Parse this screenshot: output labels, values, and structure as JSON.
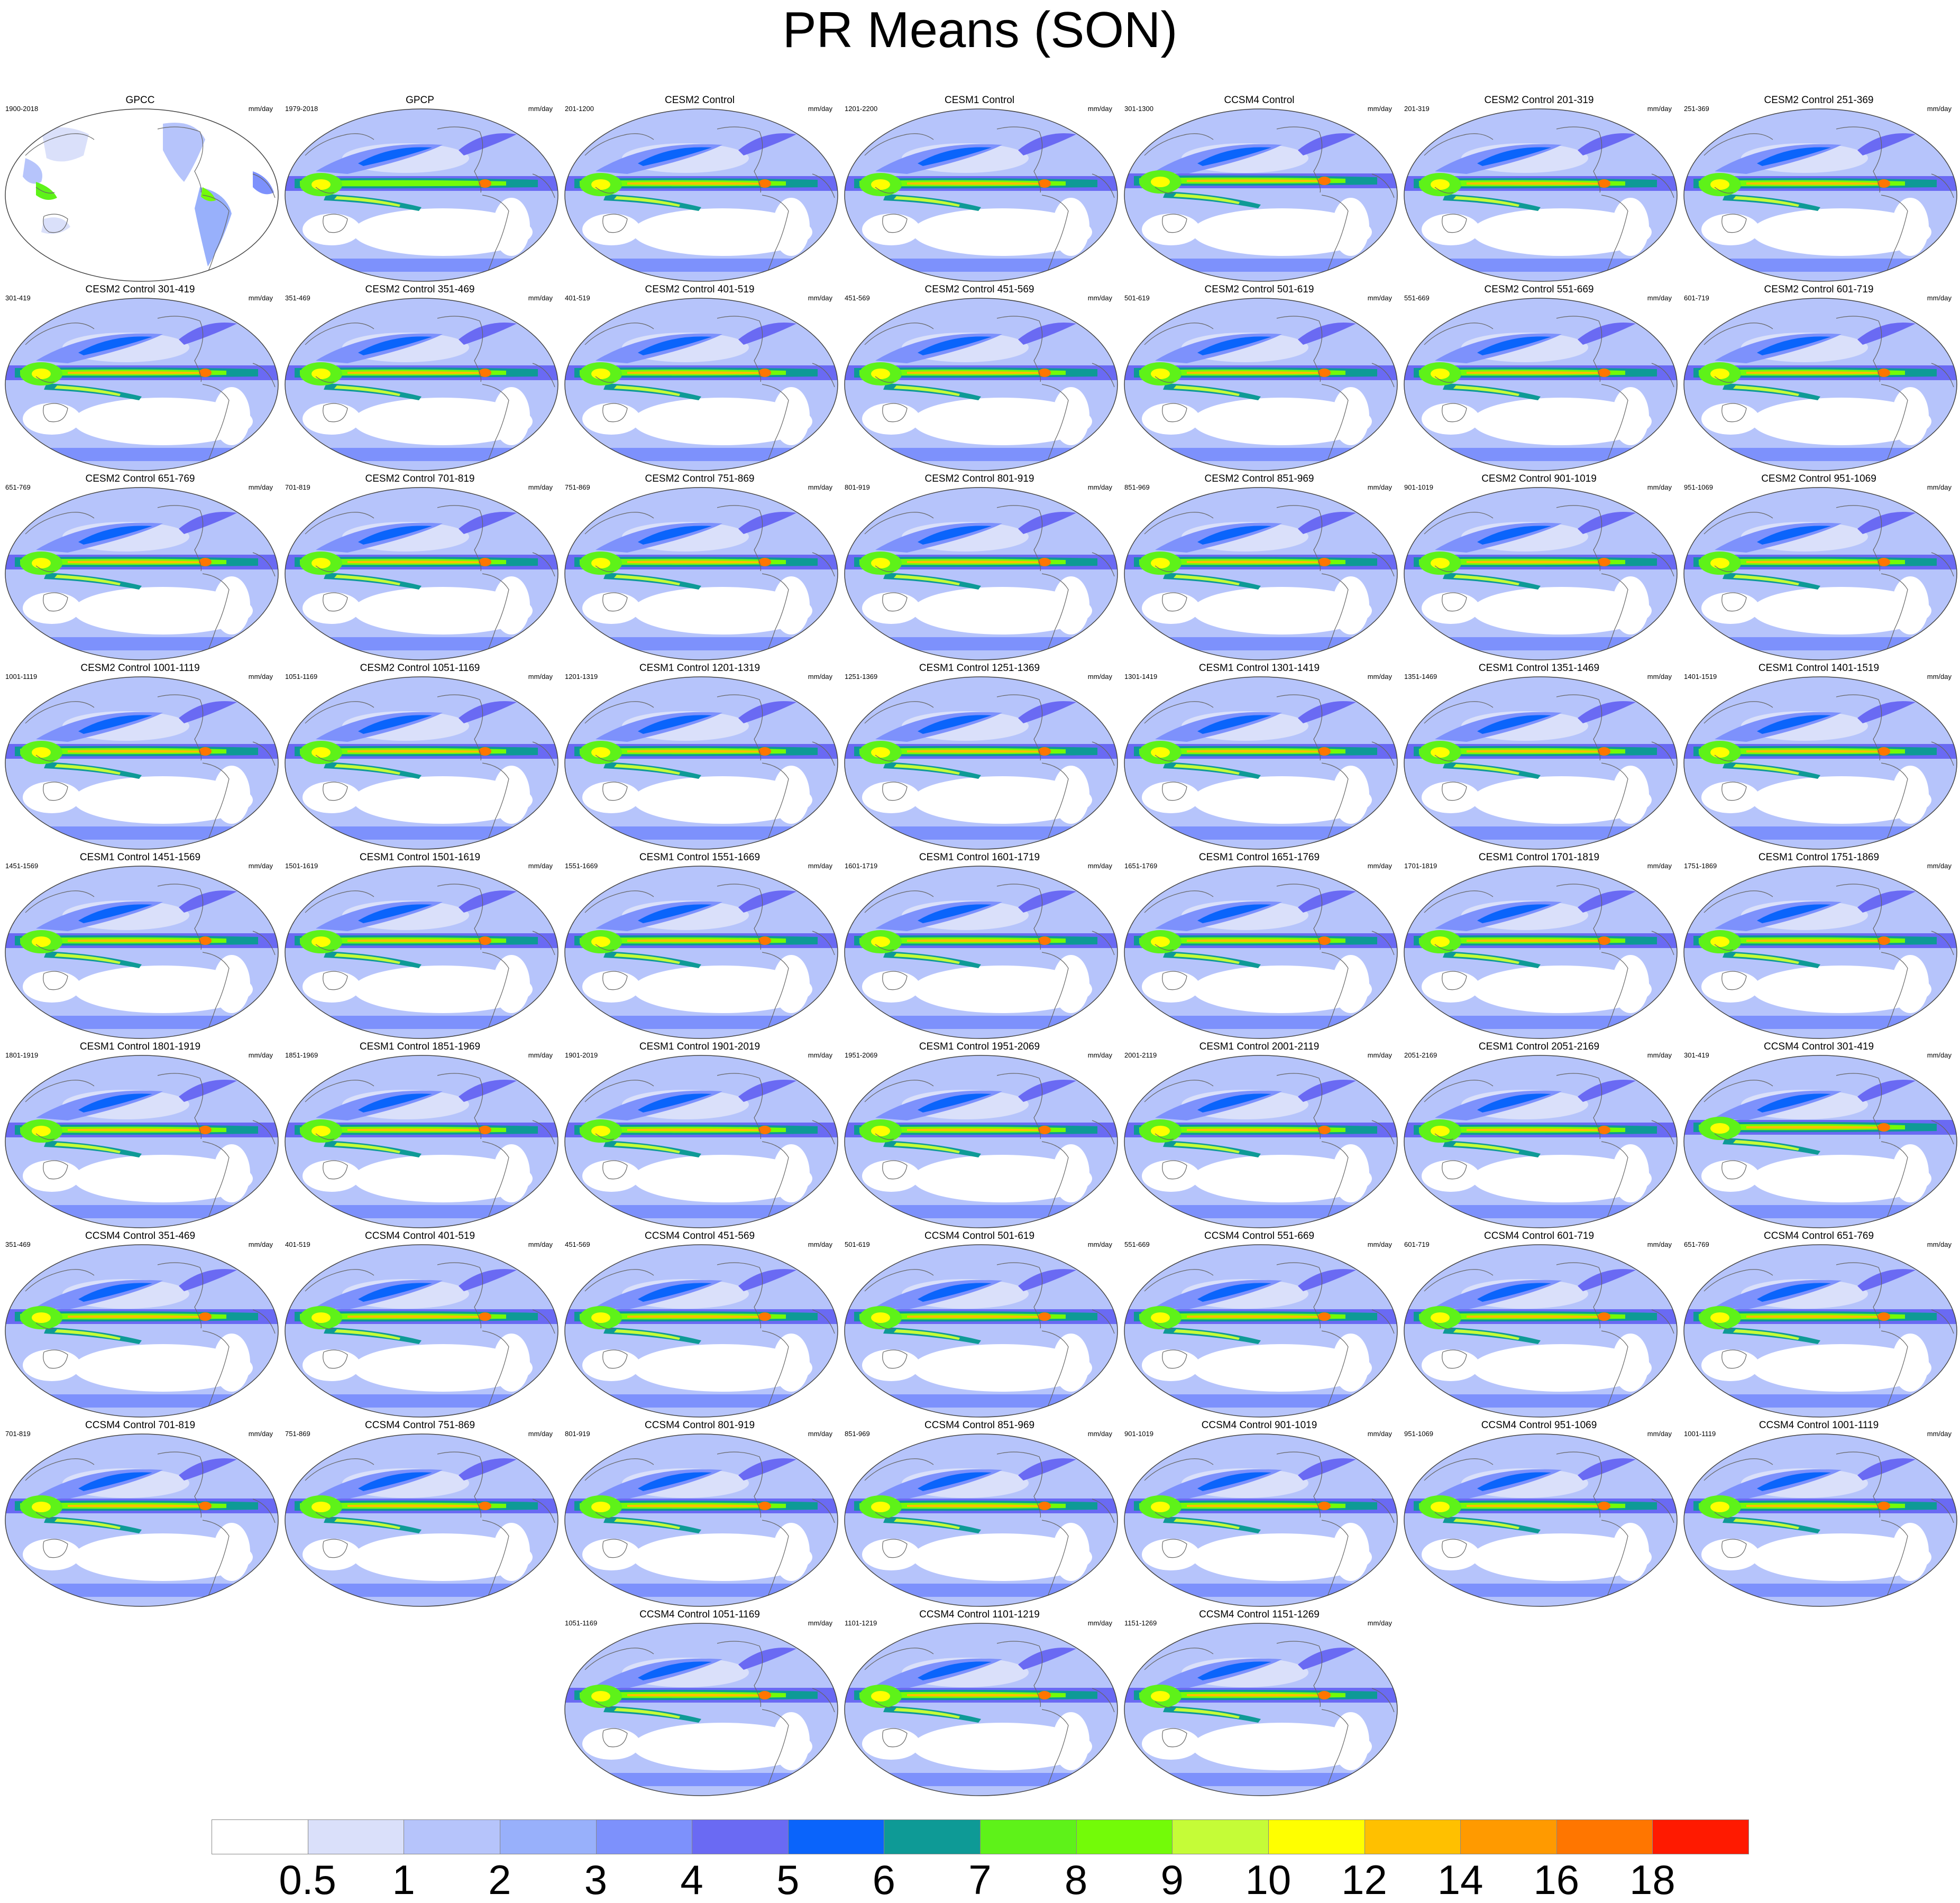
{
  "title": "PR Means (SON)",
  "units": "mm/day",
  "panels": [
    {
      "title": "GPCC",
      "years": "1900-2018",
      "kind": "obs-land"
    },
    {
      "title": "GPCP",
      "years": "1979-2018",
      "kind": "obs"
    },
    {
      "title": "CESM2 Control",
      "years": "201-1200",
      "kind": "cesm2"
    },
    {
      "title": "CESM1 Control",
      "years": "1201-2200",
      "kind": "cesm1"
    },
    {
      "title": "CCSM4 Control",
      "years": "301-1300",
      "kind": "ccsm4"
    },
    {
      "title": "CESM2 Control 201-319",
      "years": "201-319",
      "kind": "cesm2"
    },
    {
      "title": "CESM2 Control 251-369",
      "years": "251-369",
      "kind": "cesm2"
    },
    {
      "title": "CESM2 Control 301-419",
      "years": "301-419",
      "kind": "cesm2"
    },
    {
      "title": "CESM2 Control 351-469",
      "years": "351-469",
      "kind": "cesm2"
    },
    {
      "title": "CESM2 Control 401-519",
      "years": "401-519",
      "kind": "cesm2"
    },
    {
      "title": "CESM2 Control 451-569",
      "years": "451-569",
      "kind": "cesm2"
    },
    {
      "title": "CESM2 Control 501-619",
      "years": "501-619",
      "kind": "cesm2"
    },
    {
      "title": "CESM2 Control 551-669",
      "years": "551-669",
      "kind": "cesm2"
    },
    {
      "title": "CESM2 Control 601-719",
      "years": "601-719",
      "kind": "cesm2"
    },
    {
      "title": "CESM2 Control 651-769",
      "years": "651-769",
      "kind": "cesm2"
    },
    {
      "title": "CESM2 Control 701-819",
      "years": "701-819",
      "kind": "cesm2"
    },
    {
      "title": "CESM2 Control 751-869",
      "years": "751-869",
      "kind": "cesm2"
    },
    {
      "title": "CESM2 Control 801-919",
      "years": "801-919",
      "kind": "cesm2"
    },
    {
      "title": "CESM2 Control 851-969",
      "years": "851-969",
      "kind": "cesm2"
    },
    {
      "title": "CESM2 Control 901-1019",
      "years": "901-1019",
      "kind": "cesm2"
    },
    {
      "title": "CESM2 Control 951-1069",
      "years": "951-1069",
      "kind": "cesm2"
    },
    {
      "title": "CESM2 Control 1001-1119",
      "years": "1001-1119",
      "kind": "cesm2"
    },
    {
      "title": "CESM2 Control 1051-1169",
      "years": "1051-1169",
      "kind": "cesm2"
    },
    {
      "title": "CESM1 Control 1201-1319",
      "years": "1201-1319",
      "kind": "cesm1"
    },
    {
      "title": "CESM1 Control 1251-1369",
      "years": "1251-1369",
      "kind": "cesm1"
    },
    {
      "title": "CESM1 Control 1301-1419",
      "years": "1301-1419",
      "kind": "cesm1"
    },
    {
      "title": "CESM1 Control 1351-1469",
      "years": "1351-1469",
      "kind": "cesm1"
    },
    {
      "title": "CESM1 Control 1401-1519",
      "years": "1401-1519",
      "kind": "cesm1"
    },
    {
      "title": "CESM1 Control 1451-1569",
      "years": "1451-1569",
      "kind": "cesm1"
    },
    {
      "title": "CESM1 Control 1501-1619",
      "years": "1501-1619",
      "kind": "cesm1"
    },
    {
      "title": "CESM1 Control 1551-1669",
      "years": "1551-1669",
      "kind": "cesm1"
    },
    {
      "title": "CESM1 Control 1601-1719",
      "years": "1601-1719",
      "kind": "cesm1"
    },
    {
      "title": "CESM1 Control 1651-1769",
      "years": "1651-1769",
      "kind": "cesm1"
    },
    {
      "title": "CESM1 Control 1701-1819",
      "years": "1701-1819",
      "kind": "cesm1"
    },
    {
      "title": "CESM1 Control 1751-1869",
      "years": "1751-1869",
      "kind": "cesm1"
    },
    {
      "title": "CESM1 Control 1801-1919",
      "years": "1801-1919",
      "kind": "cesm1"
    },
    {
      "title": "CESM1 Control 1851-1969",
      "years": "1851-1969",
      "kind": "cesm1"
    },
    {
      "title": "CESM1 Control 1901-2019",
      "years": "1901-2019",
      "kind": "cesm1"
    },
    {
      "title": "CESM1 Control 1951-2069",
      "years": "1951-2069",
      "kind": "cesm1"
    },
    {
      "title": "CESM1 Control 2001-2119",
      "years": "2001-2119",
      "kind": "cesm1"
    },
    {
      "title": "CESM1 Control 2051-2169",
      "years": "2051-2169",
      "kind": "cesm1"
    },
    {
      "title": "CCSM4 Control 301-419",
      "years": "301-419",
      "kind": "ccsm4"
    },
    {
      "title": "CCSM4 Control 351-469",
      "years": "351-469",
      "kind": "ccsm4"
    },
    {
      "title": "CCSM4 Control 401-519",
      "years": "401-519",
      "kind": "ccsm4"
    },
    {
      "title": "CCSM4 Control 451-569",
      "years": "451-569",
      "kind": "ccsm4"
    },
    {
      "title": "CCSM4 Control 501-619",
      "years": "501-619",
      "kind": "ccsm4"
    },
    {
      "title": "CCSM4 Control 551-669",
      "years": "551-669",
      "kind": "ccsm4"
    },
    {
      "title": "CCSM4 Control 601-719",
      "years": "601-719",
      "kind": "ccsm4"
    },
    {
      "title": "CCSM4 Control 651-769",
      "years": "651-769",
      "kind": "ccsm4"
    },
    {
      "title": "CCSM4 Control 701-819",
      "years": "701-819",
      "kind": "ccsm4"
    },
    {
      "title": "CCSM4 Control 751-869",
      "years": "751-869",
      "kind": "ccsm4"
    },
    {
      "title": "CCSM4 Control 801-919",
      "years": "801-919",
      "kind": "ccsm4"
    },
    {
      "title": "CCSM4 Control 851-969",
      "years": "851-969",
      "kind": "ccsm4"
    },
    {
      "title": "CCSM4 Control 901-1019",
      "years": "901-1019",
      "kind": "ccsm4"
    },
    {
      "title": "CCSM4 Control 951-1069",
      "years": "951-1069",
      "kind": "ccsm4"
    },
    {
      "title": "CCSM4 Control 1001-1119",
      "years": "1001-1119",
      "kind": "ccsm4"
    },
    {
      "title": "CCSM4 Control 1051-1169",
      "years": "1051-1169",
      "kind": "ccsm4"
    },
    {
      "title": "CCSM4 Control 1101-1219",
      "years": "1101-1219",
      "kind": "ccsm4"
    },
    {
      "title": "CCSM4 Control 1151-1269",
      "years": "1151-1269",
      "kind": "ccsm4"
    }
  ],
  "colorbar": {
    "labels": [
      "0.5",
      "1",
      "2",
      "3",
      "4",
      "5",
      "6",
      "7",
      "8",
      "9",
      "10",
      "12",
      "14",
      "16",
      "18"
    ],
    "colors": [
      "#ffffff",
      "#dae0fa",
      "#b6c4fb",
      "#98b0fb",
      "#7d91fc",
      "#6a6af3",
      "#0a64fb",
      "#0e9a96",
      "#5ef219",
      "#73fb08",
      "#c5fc37",
      "#ffff00",
      "#ffc000",
      "#ff9a00",
      "#ff7600",
      "#ff1a00"
    ]
  }
}
